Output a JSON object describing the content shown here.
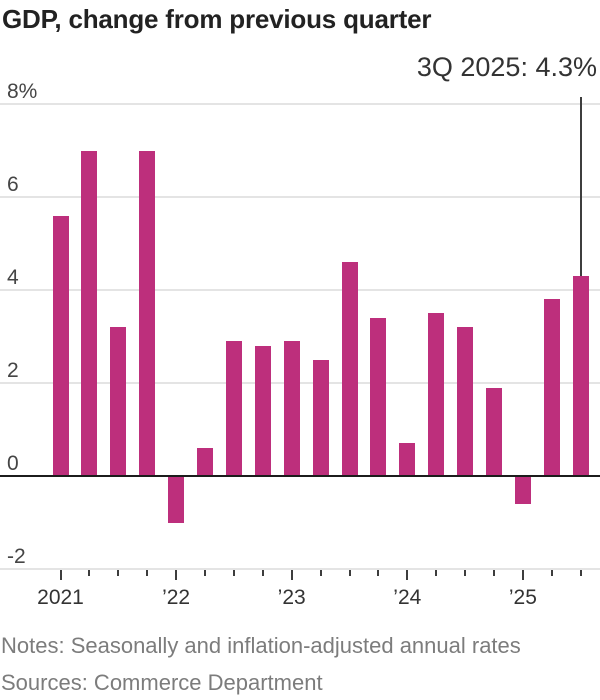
{
  "header": {
    "title": "GDP, change from previous quarter"
  },
  "callout": {
    "label": "3Q 2025: 4.3%"
  },
  "footer": {
    "notes": "Notes: Seasonally and inflation-adjusted annual rates",
    "sources": "Sources: Commerce Department"
  },
  "colors": {
    "bar": "#bd2f7c",
    "zero_line": "#1c1c1c",
    "gridline": "#e4e4e4",
    "axis_tick": "#3d3d3d",
    "callout_line": "#3d3d3d",
    "title_text": "#222222",
    "axis_text": "#454545",
    "footer_text": "#7c7c7c"
  },
  "chart_data": {
    "type": "bar",
    "title": "GDP, change from previous quarter",
    "unit": "percent, annualized",
    "categories": [
      "1Q 2021",
      "2Q 2021",
      "3Q 2021",
      "4Q 2021",
      "1Q 2022",
      "2Q 2022",
      "3Q 2022",
      "4Q 2022",
      "1Q 2023",
      "2Q 2023",
      "3Q 2023",
      "4Q 2023",
      "1Q 2024",
      "2Q 2024",
      "3Q 2024",
      "4Q 2024",
      "1Q 2025",
      "2Q 2025",
      "3Q 2025"
    ],
    "values": [
      5.6,
      7.0,
      3.2,
      7.0,
      -1.0,
      0.6,
      2.9,
      2.8,
      2.9,
      2.5,
      4.6,
      3.4,
      0.7,
      3.5,
      3.2,
      1.9,
      -0.6,
      3.8,
      4.3
    ],
    "ylim": [
      -2,
      8
    ],
    "grid": true,
    "legend": false,
    "yticks": {
      "values": [
        8,
        6,
        4,
        2,
        0,
        -2
      ],
      "labels": [
        "8%",
        "6",
        "4",
        "2",
        "0",
        "-2"
      ]
    },
    "xticks": {
      "year_labels": [
        {
          "label": "2021",
          "index": 0
        },
        {
          "label": "’22",
          "index": 4
        },
        {
          "label": "’23",
          "index": 8
        },
        {
          "label": "’24",
          "index": 12
        },
        {
          "label": "’25",
          "index": 16
        }
      ],
      "year_start_indices": [
        0,
        4,
        8,
        12,
        16
      ]
    },
    "annotation": {
      "label": "3Q 2025: 4.3%",
      "category": "3Q 2025",
      "value": 4.3,
      "bar_index": 18
    }
  }
}
